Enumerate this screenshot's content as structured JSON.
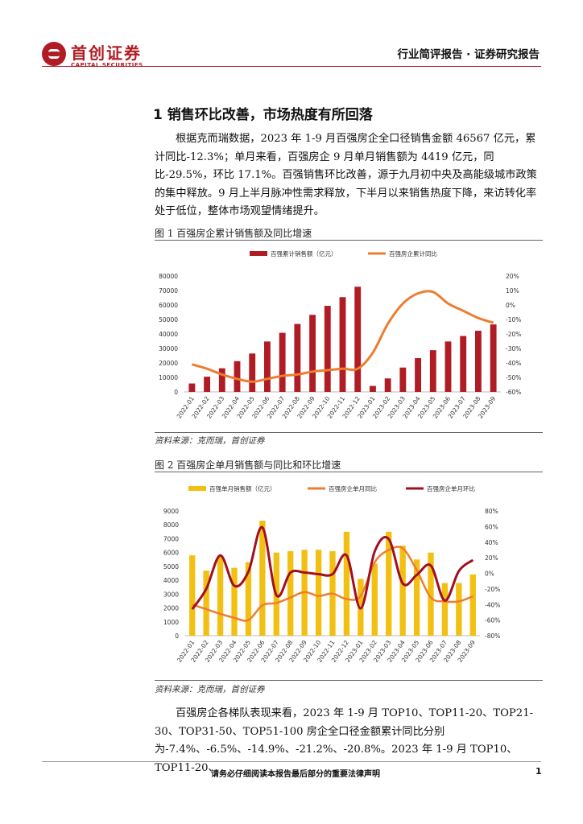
{
  "header": {
    "logo_cn": "首创证券",
    "logo_en": "CAPITAL SECURITIES",
    "right": "行业简评报告 · 证券研究报告"
  },
  "section_title": "1 销售环比改善，市场热度有所回落",
  "para1": "根据克而瑞数据，2023 年 1-9 月百强房企全口径销售金额 46567 亿元，累计同比-12.3%；单月来看，百强房企 9 月单月销售额为 4419 亿元，同比-29.5%，环比 17.1%。百强销售环比改善，源于九月初中央及高能级城市政策的集中释放。9 月上半月脉冲性需求释放，下半月以来销售热度下降，来访转化率处于低位，整体市场观望情绪提升。",
  "figure1": {
    "title": "图 1 百强房企累计销售额及同比增速",
    "source": "资料来源：克而瑞，首创证券"
  },
  "figure2": {
    "title": "图 2 百强房企单月销售额与同比和环比增速",
    "source": "资料来源：克而瑞，首创证券"
  },
  "para2": "百强房企各梯队表现来看，2023 年 1-9 月 TOP10、TOP11-20、TOP21-30、TOP31-50、TOP51-100 房企全口径金额累计同比分别为-7.4%、-6.5%、-14.9%、-21.2%、-20.8%。2023 年 1-9 月 TOP10、TOP11-20、",
  "footer": {
    "disclaimer": "请务必仔细阅读本报告最后部分的重要法律声明",
    "page": "1"
  },
  "colors": {
    "brand": "#b01c24",
    "bar1": "#b01c24",
    "line1": "#ed7d31",
    "bar2": "#f2c012",
    "line2_yoy": "#ed7d31",
    "line2_mom": "#a01020"
  },
  "chart_data": [
    {
      "type": "bar",
      "categories": [
        "2022-01",
        "2022-02",
        "2022-03",
        "2022-04",
        "2022-05",
        "2022-06",
        "2022-07",
        "2022-08",
        "2022-09",
        "2022-10",
        "2022-11",
        "2022-12",
        "2023-01",
        "2023-02",
        "2023-03",
        "2023-04",
        "2023-05",
        "2023-06",
        "2023-07",
        "2023-08",
        "2023-09"
      ],
      "series": [
        {
          "name": "百强累计销售额（亿元）",
          "axis": "left",
          "type": "bar",
          "values": [
            5800,
            10500,
            16300,
            21200,
            26500,
            34800,
            40800,
            46900,
            53200,
            59400,
            65400,
            72600,
            4100,
            9300,
            16800,
            23300,
            28800,
            34800,
            38600,
            42200,
            46567
          ]
        },
        {
          "name": "百强房企累计同比",
          "axis": "right",
          "type": "line",
          "values": [
            -41,
            -44,
            -48,
            -51,
            -53,
            -51,
            -49,
            -48,
            -46,
            -45,
            -44,
            -44,
            -33,
            -13,
            1,
            8,
            9,
            1,
            -4,
            -9,
            -12.3
          ]
        }
      ],
      "yleft": {
        "min": 0,
        "max": 80000,
        "step": 10000
      },
      "yright": {
        "min": -60,
        "max": 20,
        "step": 10,
        "unit": "%"
      },
      "legend": "top",
      "grid": false
    },
    {
      "type": "bar",
      "categories": [
        "2022-01",
        "2022-02",
        "2022-03",
        "2022-04",
        "2022-05",
        "2022-06",
        "2022-07",
        "2022-08",
        "2022-09",
        "2022-10",
        "2022-11",
        "2022-12",
        "2023-01",
        "2023-02",
        "2023-03",
        "2023-04",
        "2023-05",
        "2023-06",
        "2023-07",
        "2023-08",
        "2023-09"
      ],
      "series": [
        {
          "name": "百强单月销售额（亿元）",
          "axis": "left",
          "type": "bar",
          "values": [
            5800,
            4700,
            5800,
            4900,
            5300,
            8300,
            6000,
            6100,
            6200,
            6200,
            6100,
            7500,
            4100,
            5200,
            7500,
            6500,
            5500,
            6000,
            3800,
            3800,
            4419
          ]
        },
        {
          "name": "百强房企单月同比",
          "axis": "right",
          "type": "line",
          "values": [
            -40,
            -46,
            -52,
            -57,
            -60,
            -41,
            -38,
            -31,
            -24,
            -29,
            -26,
            -33,
            -29,
            14,
            30,
            32,
            4,
            -31,
            -36,
            -36,
            -29.5
          ]
        },
        {
          "name": "百强房企单月环比",
          "axis": "right",
          "type": "line",
          "values": [
            -46,
            -20,
            23,
            -16,
            2,
            59,
            -28,
            1,
            1,
            -1,
            -1,
            23,
            -45,
            28,
            44,
            -13,
            -2,
            10,
            -35,
            3,
            17.1
          ]
        }
      ],
      "yleft": {
        "min": 0,
        "max": 9000,
        "step": 1000
      },
      "yright": {
        "min": -80,
        "max": 80,
        "step": 20,
        "unit": "%"
      },
      "legend": "top",
      "grid": false
    }
  ]
}
